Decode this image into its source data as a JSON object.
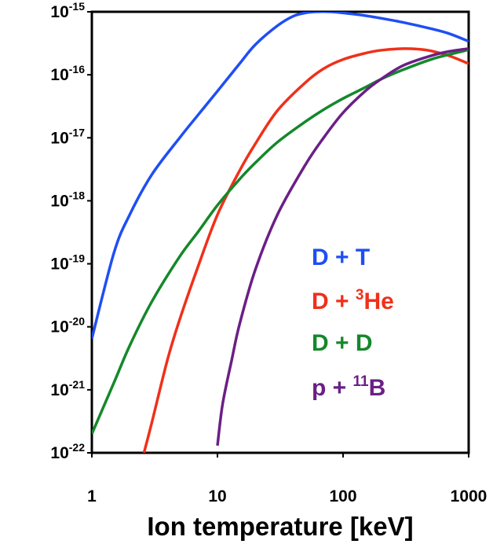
{
  "chart_data": {
    "type": "line",
    "title": "",
    "xlabel": "Ion temperature [keV]",
    "ylabel": "",
    "xscale": "log",
    "yscale": "log",
    "xlim": [
      1,
      1000
    ],
    "ylim": [
      1e-22,
      1e-15
    ],
    "grid": false,
    "legend_position": "lower-right",
    "x_ticks": [
      {
        "value": 1,
        "label": "1"
      },
      {
        "value": 10,
        "label": "10"
      },
      {
        "value": 100,
        "label": "100"
      },
      {
        "value": 1000,
        "label": "1000"
      }
    ],
    "y_ticks": [
      {
        "value": 1e-15,
        "base": "10",
        "exp": "-15"
      },
      {
        "value": 1e-16,
        "base": "10",
        "exp": "-16"
      },
      {
        "value": 1e-17,
        "base": "10",
        "exp": "-17"
      },
      {
        "value": 1e-18,
        "base": "10",
        "exp": "-18"
      },
      {
        "value": 1e-19,
        "base": "10",
        "exp": "-19"
      },
      {
        "value": 1e-20,
        "base": "10",
        "exp": "-20"
      },
      {
        "value": 1e-21,
        "base": "10",
        "exp": "-21"
      },
      {
        "value": 1e-22,
        "base": "10",
        "exp": "-22"
      }
    ],
    "series": [
      {
        "name": "D + T",
        "legend": {
          "pre": "D + ",
          "sup": "",
          "post": "T"
        },
        "color": "#1f4ef5",
        "points": [
          [
            1,
            6.5e-21
          ],
          [
            1.5,
            1.5e-19
          ],
          [
            2,
            6e-19
          ],
          [
            3,
            2.6e-18
          ],
          [
            5,
            1e-17
          ],
          [
            7,
            2.3e-17
          ],
          [
            10,
            5.5e-17
          ],
          [
            15,
            1.5e-16
          ],
          [
            20,
            3e-16
          ],
          [
            30,
            6e-16
          ],
          [
            40,
            8.5e-16
          ],
          [
            50,
            9.6e-16
          ],
          [
            60,
            1e-15
          ],
          [
            80,
            1e-15
          ],
          [
            100,
            9.6e-16
          ],
          [
            150,
            8.7e-16
          ],
          [
            200,
            7.9e-16
          ],
          [
            300,
            6.8e-16
          ],
          [
            500,
            5.4e-16
          ],
          [
            700,
            4.5e-16
          ],
          [
            1000,
            3.4e-16
          ]
        ]
      },
      {
        "name": "D + 3He",
        "legend": {
          "pre": "D + ",
          "sup": "3",
          "post": "He"
        },
        "color": "#f0301a",
        "points": [
          [
            2.6,
            1e-22
          ],
          [
            3,
            3e-22
          ],
          [
            4,
            3e-21
          ],
          [
            5,
            1.3e-20
          ],
          [
            7,
            9e-20
          ],
          [
            10,
            6e-19
          ],
          [
            15,
            3e-18
          ],
          [
            20,
            8e-18
          ],
          [
            30,
            2.7e-17
          ],
          [
            50,
            7.5e-17
          ],
          [
            70,
            1.25e-16
          ],
          [
            100,
            1.75e-16
          ],
          [
            150,
            2.2e-16
          ],
          [
            200,
            2.45e-16
          ],
          [
            300,
            2.6e-16
          ],
          [
            400,
            2.55e-16
          ],
          [
            500,
            2.4e-16
          ],
          [
            700,
            2e-16
          ],
          [
            1000,
            1.5e-16
          ]
        ]
      },
      {
        "name": "D + D",
        "legend": {
          "pre": "D + ",
          "sup": "",
          "post": "D"
        },
        "color": "#14882a",
        "points": [
          [
            1,
            2e-22
          ],
          [
            1.5,
            1.3e-21
          ],
          [
            2,
            5e-21
          ],
          [
            3,
            2.5e-20
          ],
          [
            5,
            1.3e-19
          ],
          [
            7,
            3.2e-19
          ],
          [
            10,
            8.5e-19
          ],
          [
            15,
            2.2e-18
          ],
          [
            20,
            4e-18
          ],
          [
            30,
            8.5e-18
          ],
          [
            50,
            1.8e-17
          ],
          [
            70,
            2.8e-17
          ],
          [
            100,
            4.2e-17
          ],
          [
            150,
            6.3e-17
          ],
          [
            200,
            8.5e-17
          ],
          [
            300,
            1.2e-16
          ],
          [
            500,
            1.75e-16
          ],
          [
            700,
            2.1e-16
          ],
          [
            1000,
            2.5e-16
          ]
        ]
      },
      {
        "name": "p + 11B",
        "legend": {
          "pre": "p + ",
          "sup": "11",
          "post": "B"
        },
        "color": "#6b1f86",
        "points": [
          [
            10,
            1.3e-22
          ],
          [
            11,
            6e-22
          ],
          [
            13,
            3e-21
          ],
          [
            15,
            1.1e-20
          ],
          [
            20,
            8e-20
          ],
          [
            30,
            6e-19
          ],
          [
            50,
            3.7e-18
          ],
          [
            70,
            1e-17
          ],
          [
            100,
            2.5e-17
          ],
          [
            150,
            5.5e-17
          ],
          [
            200,
            8.5e-17
          ],
          [
            300,
            1.4e-16
          ],
          [
            500,
            2e-16
          ],
          [
            700,
            2.35e-16
          ],
          [
            1000,
            2.6e-16
          ]
        ]
      }
    ]
  }
}
